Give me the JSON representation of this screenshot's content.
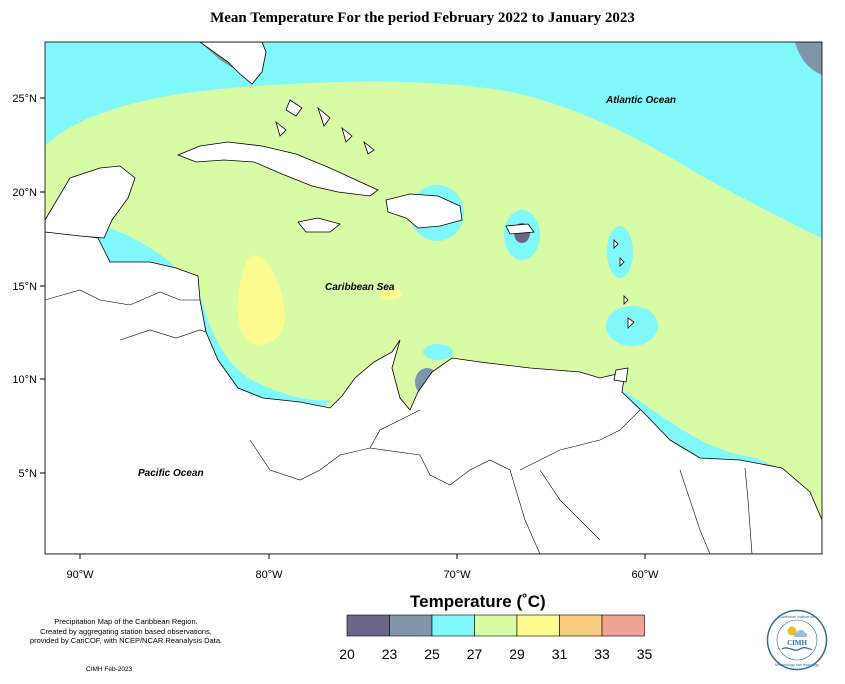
{
  "title": "Mean Temperature For the period February 2022 to January 2023",
  "map_labels": {
    "atlantic": "Atlantic Ocean",
    "caribbean": "Caribbean Sea",
    "pacific": "Pacific Ocean"
  },
  "lat_ticks": [
    "25°N",
    "20°N",
    "15°N",
    "10°N",
    "5°N"
  ],
  "lon_ticks": [
    "90°W",
    "80°W",
    "70°W",
    "60°W"
  ],
  "legend": {
    "title": "Temperature (˚C)",
    "ticks": [
      "20",
      "23",
      "25",
      "27",
      "29",
      "31",
      "33",
      "35"
    ],
    "colors": [
      "#6b6589",
      "#7e95aa",
      "#7ff7fb",
      "#d8fba6",
      "#fbfb8f",
      "#f9cd80",
      "#eea495"
    ]
  },
  "notes": [
    "Precipitation Map of the Caribbean Region.",
    "Created by aggregating station based observations,",
    "provided by CariCOF, with NCEP/NCAR Reanalysis Data."
  ],
  "credit": "CIMH Feb-2023",
  "logo": {
    "name": "CIMH",
    "ring_top": "Caribbean Institute for",
    "ring_bottom": "Meteorology and Hydrology"
  }
}
